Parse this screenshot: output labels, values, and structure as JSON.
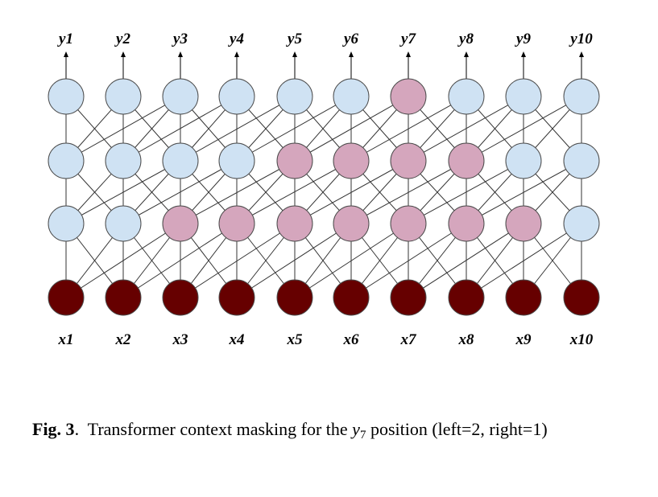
{
  "diagram": {
    "output_labels": [
      "y1",
      "y2",
      "y3",
      "y4",
      "y5",
      "y6",
      "y7",
      "y8",
      "y9",
      "y10"
    ],
    "input_labels": [
      "x1",
      "x2",
      "x3",
      "x4",
      "x5",
      "x6",
      "x7",
      "x8",
      "x9",
      "x10"
    ],
    "layers": [
      [
        "light",
        "light",
        "light",
        "light",
        "light",
        "light",
        "pink",
        "light",
        "light",
        "light"
      ],
      [
        "light",
        "light",
        "light",
        "light",
        "pink",
        "pink",
        "pink",
        "pink",
        "light",
        "light"
      ],
      [
        "light",
        "light",
        "pink",
        "pink",
        "pink",
        "pink",
        "pink",
        "pink",
        "pink",
        "light"
      ],
      [
        "dark",
        "dark",
        "dark",
        "dark",
        "dark",
        "dark",
        "dark",
        "dark",
        "dark",
        "dark"
      ]
    ],
    "context": {
      "left": 2,
      "right": 1
    },
    "colors": {
      "light": "#cfe2f3",
      "pink": "#d5a6bd",
      "dark": "#660000",
      "edge": "#333333"
    }
  },
  "caption": {
    "fig_label": "Fig. 3",
    "sep": ".",
    "text_before": "  Transformer context masking for the ",
    "var_letter": "y",
    "var_sub": "7",
    "text_after": " position (left=2, right=1)"
  }
}
